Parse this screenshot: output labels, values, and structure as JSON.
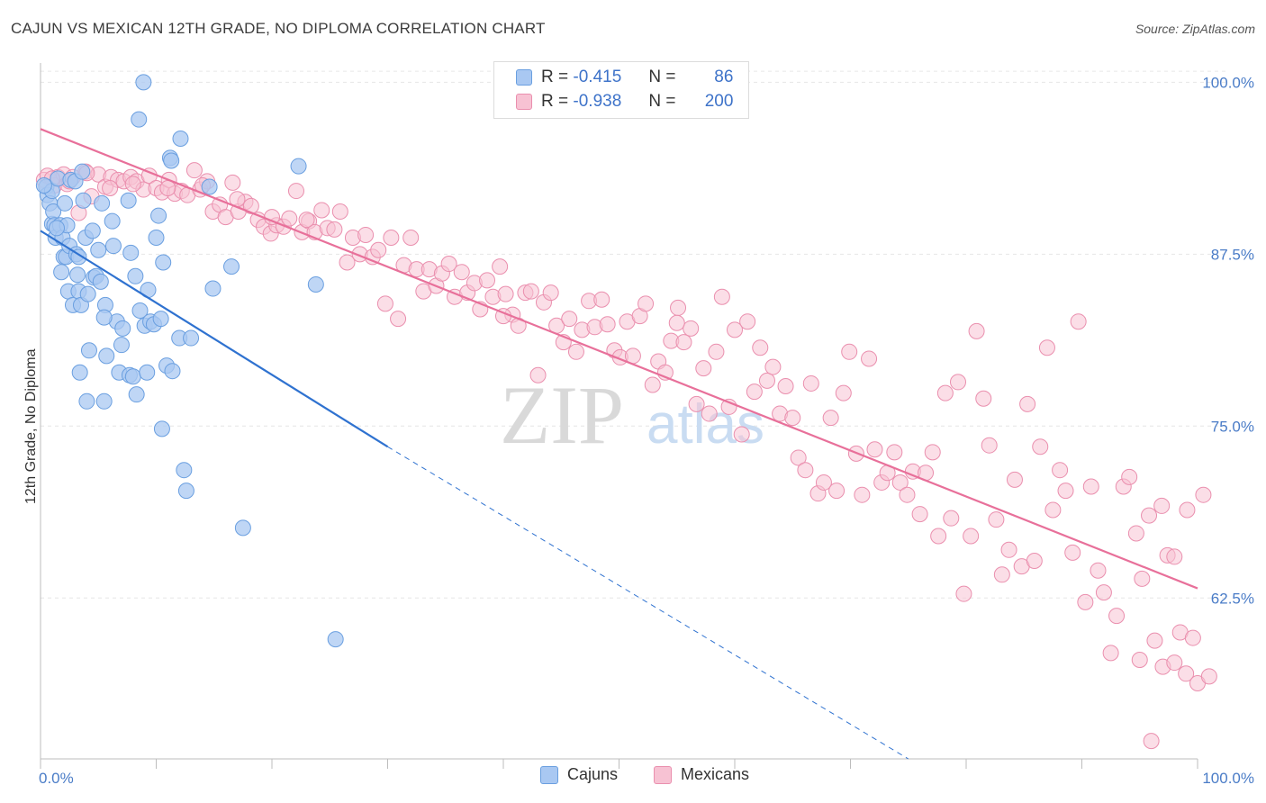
{
  "header": {
    "title": "CAJUN VS MEXICAN 12TH GRADE, NO DIPLOMA CORRELATION CHART",
    "source": "Source: ZipAtlas.com"
  },
  "legend": {
    "cajun": {
      "r_label": "R =",
      "r_value": "-0.415",
      "n_label": "N =",
      "n_value": "86"
    },
    "mexican": {
      "r_label": "R =",
      "r_value": "-0.938",
      "n_label": "N =",
      "n_value": "200"
    }
  },
  "bottom_legend": {
    "cajun": "Cajuns",
    "mexican": "Mexicans"
  },
  "watermark": {
    "zip": "ZIP",
    "atlas": "atlas"
  },
  "colors": {
    "cajun_fill": "#a9c8f2",
    "cajun_stroke": "#6a9fe0",
    "cajun_line": "#2f72d0",
    "mexican_fill": "#f7c2d3",
    "mexican_stroke": "#ea8fae",
    "mexican_line": "#e8709a",
    "tick_text": "#4a7cc7"
  },
  "chart_data": {
    "type": "scatter",
    "title": "CAJUN VS MEXICAN 12TH GRADE, NO DIPLOMA CORRELATION CHART",
    "xlabel": "",
    "ylabel": "12th Grade, No Diploma",
    "xlim": [
      0,
      100
    ],
    "ylim": [
      50.8,
      101.4
    ],
    "x_tick_labels": [
      "0.0%",
      "100.0%"
    ],
    "y_ticks": [
      62.5,
      75.0,
      87.5,
      100.0
    ],
    "y_tick_labels": [
      "62.5%",
      "75.0%",
      "87.5%",
      "100.0%"
    ],
    "grid": true,
    "series": [
      {
        "name": "Cajuns",
        "trend": {
          "x0": 0,
          "y0": 89.2,
          "x1": 30,
          "y1": 73.5,
          "dashed_to_x": 75,
          "dashed_to_y": 50.8
        },
        "points": [
          [
            0.5,
            92.4
          ],
          [
            0.6,
            91.8
          ],
          [
            0.8,
            91.2
          ],
          [
            1.0,
            89.7
          ],
          [
            1.0,
            92.1
          ],
          [
            1.1,
            90.6
          ],
          [
            1.2,
            89.6
          ],
          [
            1.3,
            88.7
          ],
          [
            1.5,
            93.0
          ],
          [
            1.7,
            89.6
          ],
          [
            1.8,
            86.2
          ],
          [
            1.9,
            88.7
          ],
          [
            2.0,
            87.3
          ],
          [
            2.1,
            91.2
          ],
          [
            2.2,
            87.3
          ],
          [
            2.3,
            89.6
          ],
          [
            2.4,
            84.8
          ],
          [
            2.5,
            88.1
          ],
          [
            2.6,
            92.9
          ],
          [
            2.8,
            83.8
          ],
          [
            3.0,
            92.8
          ],
          [
            3.1,
            87.5
          ],
          [
            3.2,
            86.0
          ],
          [
            3.3,
            84.8
          ],
          [
            3.4,
            78.9
          ],
          [
            3.5,
            83.8
          ],
          [
            3.6,
            93.5
          ],
          [
            3.7,
            91.4
          ],
          [
            3.9,
            88.7
          ],
          [
            4.0,
            76.8
          ],
          [
            4.1,
            84.6
          ],
          [
            4.2,
            80.5
          ],
          [
            4.5,
            89.2
          ],
          [
            4.6,
            85.8
          ],
          [
            4.8,
            85.9
          ],
          [
            5.0,
            87.8
          ],
          [
            5.2,
            85.5
          ],
          [
            5.3,
            91.2
          ],
          [
            5.5,
            76.8
          ],
          [
            5.6,
            83.8
          ],
          [
            5.7,
            80.1
          ],
          [
            6.2,
            89.9
          ],
          [
            6.3,
            88.1
          ],
          [
            6.6,
            82.6
          ],
          [
            6.8,
            78.9
          ],
          [
            7.0,
            80.9
          ],
          [
            7.1,
            82.1
          ],
          [
            7.6,
            91.4
          ],
          [
            7.7,
            78.7
          ],
          [
            7.8,
            87.6
          ],
          [
            8.0,
            78.6
          ],
          [
            8.2,
            85.9
          ],
          [
            8.3,
            77.3
          ],
          [
            8.5,
            97.3
          ],
          [
            8.6,
            83.4
          ],
          [
            8.9,
            100.0
          ],
          [
            9.0,
            82.3
          ],
          [
            9.2,
            78.9
          ],
          [
            9.5,
            82.6
          ],
          [
            9.8,
            82.4
          ],
          [
            10.0,
            88.7
          ],
          [
            10.2,
            90.3
          ],
          [
            10.4,
            82.8
          ],
          [
            10.5,
            74.8
          ],
          [
            10.6,
            86.9
          ],
          [
            10.9,
            79.4
          ],
          [
            11.2,
            94.5
          ],
          [
            11.4,
            79.0
          ],
          [
            12.0,
            81.4
          ],
          [
            12.1,
            95.9
          ],
          [
            12.4,
            71.8
          ],
          [
            12.6,
            70.3
          ],
          [
            13.0,
            81.4
          ],
          [
            14.6,
            92.4
          ],
          [
            14.9,
            85.0
          ],
          [
            16.5,
            86.6
          ],
          [
            17.5,
            67.6
          ],
          [
            22.3,
            93.9
          ],
          [
            23.8,
            85.3
          ],
          [
            25.5,
            59.5
          ],
          [
            0.3,
            92.5
          ],
          [
            1.4,
            89.4
          ],
          [
            3.3,
            87.3
          ],
          [
            5.5,
            82.9
          ],
          [
            9.3,
            84.9
          ],
          [
            11.3,
            94.3
          ]
        ]
      },
      {
        "name": "Mexicans",
        "trend": {
          "x0": 0,
          "y0": 96.6,
          "x1": 100,
          "y1": 63.2
        },
        "points": [
          [
            0.3,
            92.9
          ],
          [
            0.6,
            93.2
          ],
          [
            1.2,
            92.5
          ],
          [
            1.5,
            93.1
          ],
          [
            2.0,
            93.3
          ],
          [
            2.3,
            92.6
          ],
          [
            2.8,
            93.1
          ],
          [
            3.3,
            90.5
          ],
          [
            3.9,
            93.5
          ],
          [
            4.4,
            91.7
          ],
          [
            5.0,
            93.3
          ],
          [
            5.6,
            92.4
          ],
          [
            6.1,
            93.1
          ],
          [
            6.7,
            92.9
          ],
          [
            7.2,
            92.8
          ],
          [
            7.8,
            93.1
          ],
          [
            8.3,
            92.8
          ],
          [
            8.9,
            92.2
          ],
          [
            9.4,
            93.2
          ],
          [
            10.0,
            92.3
          ],
          [
            10.5,
            92.0
          ],
          [
            11.1,
            92.9
          ],
          [
            11.6,
            91.9
          ],
          [
            12.2,
            92.1
          ],
          [
            12.7,
            91.8
          ],
          [
            13.3,
            93.6
          ],
          [
            13.8,
            92.2
          ],
          [
            14.4,
            92.8
          ],
          [
            14.9,
            90.6
          ],
          [
            15.5,
            91.1
          ],
          [
            16.0,
            90.2
          ],
          [
            16.6,
            92.7
          ],
          [
            17.1,
            90.6
          ],
          [
            17.7,
            91.3
          ],
          [
            18.2,
            91.0
          ],
          [
            18.8,
            90.0
          ],
          [
            19.3,
            89.5
          ],
          [
            19.9,
            89.0
          ],
          [
            20.4,
            89.6
          ],
          [
            21.0,
            89.5
          ],
          [
            21.5,
            90.1
          ],
          [
            22.1,
            92.1
          ],
          [
            22.6,
            89.1
          ],
          [
            23.2,
            89.9
          ],
          [
            23.7,
            89.1
          ],
          [
            24.3,
            90.7
          ],
          [
            24.8,
            89.4
          ],
          [
            25.4,
            89.3
          ],
          [
            25.9,
            90.6
          ],
          [
            26.5,
            86.9
          ],
          [
            27.0,
            88.7
          ],
          [
            27.6,
            87.5
          ],
          [
            28.1,
            88.9
          ],
          [
            28.7,
            87.3
          ],
          [
            29.2,
            87.8
          ],
          [
            29.8,
            83.9
          ],
          [
            30.3,
            88.7
          ],
          [
            30.9,
            82.8
          ],
          [
            31.4,
            86.7
          ],
          [
            32.0,
            88.7
          ],
          [
            32.5,
            86.4
          ],
          [
            33.1,
            84.8
          ],
          [
            33.6,
            86.4
          ],
          [
            34.2,
            85.2
          ],
          [
            34.7,
            86.1
          ],
          [
            35.3,
            86.8
          ],
          [
            35.8,
            84.4
          ],
          [
            36.4,
            86.2
          ],
          [
            36.9,
            84.7
          ],
          [
            37.5,
            85.4
          ],
          [
            38.0,
            83.5
          ],
          [
            38.6,
            85.6
          ],
          [
            39.1,
            84.4
          ],
          [
            39.7,
            86.6
          ],
          [
            40.2,
            84.6
          ],
          [
            40.8,
            83.1
          ],
          [
            41.3,
            82.3
          ],
          [
            41.9,
            84.7
          ],
          [
            42.4,
            84.8
          ],
          [
            43.0,
            78.7
          ],
          [
            43.5,
            84.0
          ],
          [
            44.1,
            84.7
          ],
          [
            44.6,
            82.3
          ],
          [
            45.2,
            81.1
          ],
          [
            45.7,
            82.8
          ],
          [
            46.3,
            80.4
          ],
          [
            46.8,
            82.0
          ],
          [
            47.4,
            84.1
          ],
          [
            47.9,
            82.2
          ],
          [
            48.5,
            84.2
          ],
          [
            49.0,
            82.4
          ],
          [
            49.6,
            80.5
          ],
          [
            50.1,
            80.0
          ],
          [
            50.7,
            82.6
          ],
          [
            51.2,
            80.1
          ],
          [
            51.8,
            83.0
          ],
          [
            52.3,
            83.9
          ],
          [
            52.9,
            78.0
          ],
          [
            53.4,
            79.7
          ],
          [
            54.0,
            78.9
          ],
          [
            54.5,
            81.2
          ],
          [
            55.1,
            83.6
          ],
          [
            55.6,
            81.1
          ],
          [
            56.2,
            82.1
          ],
          [
            56.7,
            76.6
          ],
          [
            57.3,
            79.2
          ],
          [
            57.8,
            75.9
          ],
          [
            58.4,
            80.4
          ],
          [
            58.9,
            84.4
          ],
          [
            59.5,
            76.4
          ],
          [
            60.0,
            82.0
          ],
          [
            60.6,
            74.4
          ],
          [
            61.1,
            82.6
          ],
          [
            61.7,
            77.5
          ],
          [
            62.2,
            80.7
          ],
          [
            62.8,
            78.3
          ],
          [
            63.3,
            79.3
          ],
          [
            63.9,
            75.9
          ],
          [
            64.4,
            77.9
          ],
          [
            65.0,
            75.6
          ],
          [
            65.5,
            72.7
          ],
          [
            66.1,
            71.8
          ],
          [
            66.6,
            78.1
          ],
          [
            67.2,
            70.1
          ],
          [
            67.7,
            70.9
          ],
          [
            68.3,
            75.6
          ],
          [
            68.8,
            70.3
          ],
          [
            69.4,
            77.4
          ],
          [
            69.9,
            80.4
          ],
          [
            70.5,
            73.0
          ],
          [
            71.0,
            70.0
          ],
          [
            71.6,
            79.9
          ],
          [
            72.1,
            73.3
          ],
          [
            72.7,
            70.9
          ],
          [
            73.2,
            71.6
          ],
          [
            73.8,
            73.1
          ],
          [
            74.3,
            70.9
          ],
          [
            74.9,
            70.0
          ],
          [
            75.4,
            71.7
          ],
          [
            76.0,
            68.6
          ],
          [
            76.5,
            71.6
          ],
          [
            77.1,
            73.1
          ],
          [
            77.6,
            67.0
          ],
          [
            78.2,
            77.4
          ],
          [
            78.7,
            68.3
          ],
          [
            79.3,
            78.2
          ],
          [
            79.8,
            62.8
          ],
          [
            80.4,
            67.0
          ],
          [
            80.9,
            81.9
          ],
          [
            81.5,
            77.0
          ],
          [
            82.0,
            73.6
          ],
          [
            82.6,
            68.2
          ],
          [
            83.1,
            64.2
          ],
          [
            83.7,
            66.0
          ],
          [
            84.2,
            71.1
          ],
          [
            84.8,
            64.8
          ],
          [
            85.3,
            76.6
          ],
          [
            85.9,
            65.2
          ],
          [
            86.4,
            73.5
          ],
          [
            87.0,
            80.7
          ],
          [
            87.5,
            68.9
          ],
          [
            88.1,
            71.8
          ],
          [
            88.6,
            70.3
          ],
          [
            89.2,
            65.8
          ],
          [
            89.7,
            82.6
          ],
          [
            90.3,
            62.2
          ],
          [
            90.8,
            70.6
          ],
          [
            91.4,
            64.5
          ],
          [
            91.9,
            62.9
          ],
          [
            92.5,
            58.5
          ],
          [
            93.0,
            61.2
          ],
          [
            93.6,
            70.6
          ],
          [
            94.1,
            71.3
          ],
          [
            94.7,
            67.2
          ],
          [
            95.2,
            63.9
          ],
          [
            95.8,
            68.5
          ],
          [
            96.3,
            59.4
          ],
          [
            96.9,
            69.2
          ],
          [
            97.4,
            65.6
          ],
          [
            98.0,
            65.5
          ],
          [
            98.5,
            60.0
          ],
          [
            99.1,
            68.9
          ],
          [
            99.6,
            59.6
          ],
          [
            1.0,
            93.0
          ],
          [
            2.5,
            92.8
          ],
          [
            4.0,
            93.4
          ],
          [
            6.0,
            92.3
          ],
          [
            8.0,
            92.6
          ],
          [
            11.0,
            92.3
          ],
          [
            14.0,
            92.5
          ],
          [
            17.0,
            91.5
          ],
          [
            20.0,
            90.2
          ],
          [
            23.0,
            90.0
          ],
          [
            40.0,
            83.0
          ],
          [
            55.0,
            82.5
          ],
          [
            96.0,
            52.1
          ],
          [
            97.0,
            57.5
          ],
          [
            98.0,
            57.8
          ],
          [
            99.0,
            57.0
          ],
          [
            100.0,
            56.3
          ],
          [
            101.0,
            56.8
          ],
          [
            95.0,
            58.0
          ],
          [
            100.5,
            70.0
          ]
        ]
      }
    ]
  }
}
